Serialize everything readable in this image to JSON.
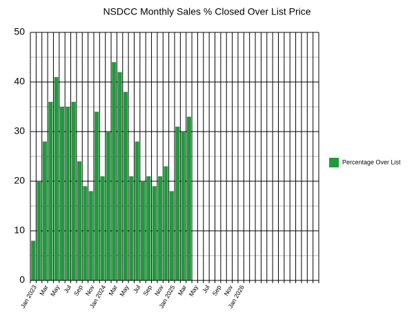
{
  "chart_data": {
    "type": "bar",
    "title": "NSDCC Monthly Sales % Closed Over List Price",
    "categories": [
      "Jan 2023",
      null,
      "Mar",
      null,
      "May",
      null,
      "Jul",
      null,
      "Sep",
      null,
      "Nov",
      null,
      "Jan 2024",
      null,
      "Mar",
      null,
      "May",
      null,
      "Jul",
      null,
      "Sep",
      null,
      "Nov",
      null,
      "Jan 2025",
      null,
      "Mar",
      null,
      "May",
      null,
      "Jul",
      null,
      "Sep",
      null,
      "Nov",
      null,
      "Jan 2026",
      null,
      null,
      null,
      null,
      null,
      null,
      null,
      null,
      null,
      null,
      null,
      null,
      null
    ],
    "series": [
      {
        "name": "Percentage Over List",
        "color": "#1e9b3c",
        "values": [
          8,
          20,
          28,
          36,
          41,
          35,
          35,
          36,
          24,
          19,
          18,
          34,
          21,
          30,
          44,
          42,
          38,
          21,
          28,
          20,
          21,
          19,
          21,
          23,
          18,
          31,
          30,
          33,
          null,
          null,
          null,
          null,
          null,
          null,
          null,
          null,
          null,
          null,
          null,
          null,
          null,
          null,
          null,
          null,
          null,
          null,
          null,
          null,
          null,
          null
        ]
      }
    ],
    "ylim": [
      0,
      50
    ],
    "yticks": [
      0,
      10,
      20,
      30,
      40,
      50
    ],
    "minor_yticks": [
      5,
      15,
      25,
      35,
      45
    ],
    "grid": true,
    "legend": "right"
  }
}
